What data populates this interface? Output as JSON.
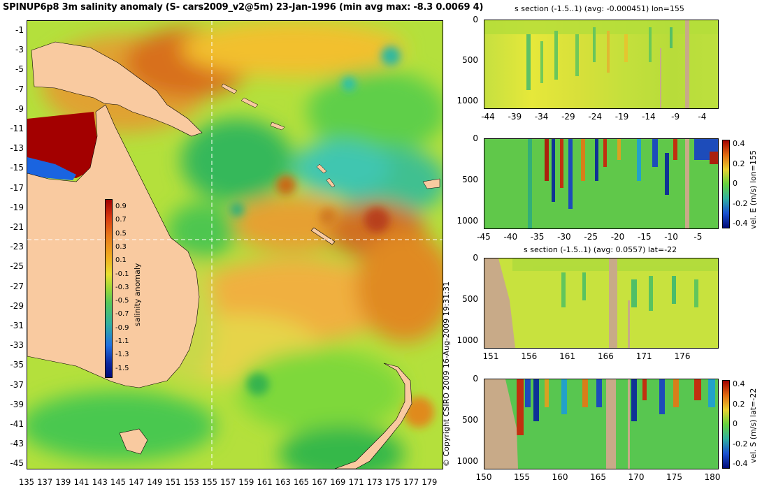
{
  "title": "SPINUP6p8 3m salinity anomaly (S- cars2009_v2@5m) 23-Jan-1996 (min avg max: -8.3 0.0069 4)",
  "copyright": "© Copyright CSIRO 2009   16-Aug-2009 19:31:31",
  "map": {
    "y_ticks": [
      "-1",
      "-3",
      "-5",
      "-7",
      "-9",
      "-11",
      "-13",
      "-15",
      "-17",
      "-19",
      "-21",
      "-23",
      "-25",
      "-27",
      "-29",
      "-31",
      "-33",
      "-35",
      "-37",
      "-39",
      "-41",
      "-43",
      "-45"
    ],
    "x_ticks": [
      "135",
      "137",
      "139",
      "141",
      "143",
      "145",
      "147",
      "149",
      "151",
      "153",
      "155",
      "157",
      "159",
      "161",
      "163",
      "165",
      "167",
      "169",
      "171",
      "173",
      "175",
      "177",
      "179"
    ],
    "colorbar": {
      "label": "salinity anomaly",
      "ticks": [
        "0.9",
        "0.7",
        "0.5",
        "0.3",
        "0.1",
        "-0.1",
        "-0.3",
        "-0.5",
        "-0.7",
        "-0.9",
        "-1.1",
        "-1.3",
        "-1.5"
      ]
    }
  },
  "panels": [
    {
      "title": "s section (-1.5..1) (avg: -0.000451) lon=155",
      "y_ticks": [
        "0",
        "500",
        "1000"
      ],
      "x_ticks": [
        "-44",
        "-39",
        "-34",
        "-29",
        "-24",
        "-19",
        "-14",
        "-9",
        "-4"
      ]
    },
    {
      "title": "",
      "y_ticks": [
        "0",
        "500",
        "1000"
      ],
      "x_ticks": [
        "-45",
        "-40",
        "-35",
        "-30",
        "-25",
        "-20",
        "-15",
        "-10",
        "-5"
      ],
      "colorbar": {
        "label": "vel. E (m/s) lon=155",
        "ticks": [
          "0.4",
          "0.2",
          "0",
          "-0.2",
          "-0.4"
        ]
      }
    },
    {
      "title": "s section (-1.5..1) (avg: 0.0557) lat=-22",
      "y_ticks": [
        "0",
        "500",
        "1000"
      ],
      "x_ticks": [
        "151",
        "156",
        "161",
        "166",
        "171",
        "176"
      ]
    },
    {
      "title": "",
      "y_ticks": [
        "0",
        "500",
        "1000"
      ],
      "x_ticks": [
        "150",
        "155",
        "160",
        "165",
        "170",
        "175",
        "180"
      ],
      "colorbar": {
        "label": "vel. S (m/s) lat=-22",
        "ticks": [
          "0.4",
          "0.2",
          "0",
          "-0.2",
          "-0.4"
        ]
      }
    }
  ],
  "colors": {
    "land": "#f9caa0",
    "section_land": "#c8aa88",
    "high": "#a30000",
    "mid": "#66d23e",
    "low": "#000a78"
  },
  "chart_data": [
    {
      "type": "heatmap",
      "title": "SPINUP6p8 3m salinity anomaly (S- cars2009_v2@5m) 23-Jan-1996 (min avg max: -8.3 0.0069 4)",
      "xlim": [
        135,
        180
      ],
      "ylim": [
        -45,
        0
      ],
      "clim": [
        -1.5,
        1
      ],
      "colorbar_label": "salinity anomaly",
      "section_lines": {
        "lon": 155,
        "lat": -22
      },
      "stats": {
        "min": -8.3,
        "avg": 0.0069,
        "max": 4
      }
    },
    {
      "type": "heatmap",
      "title": "s section (-1.5..1) (avg: -0.000451) lon=155",
      "xlim": [
        -45,
        -1
      ],
      "ylim": [
        1050,
        0
      ],
      "clim": [
        -1.5,
        1
      ],
      "avg": -0.000451
    },
    {
      "type": "heatmap",
      "xlim": [
        -45,
        -1
      ],
      "ylim": [
        1050,
        0
      ],
      "clim": [
        -0.4,
        0.4
      ],
      "colorbar_label": "vel. E (m/s) lon=155"
    },
    {
      "type": "heatmap",
      "title": "s section (-1.5..1) (avg: 0.0557) lat=-22",
      "xlim": [
        150,
        180
      ],
      "ylim": [
        1050,
        0
      ],
      "clim": [
        -1.5,
        1
      ],
      "avg": 0.0557
    },
    {
      "type": "heatmap",
      "xlim": [
        150,
        180
      ],
      "ylim": [
        1050,
        0
      ],
      "clim": [
        -0.4,
        0.4
      ],
      "colorbar_label": "vel. S (m/s) lat=-22"
    }
  ]
}
